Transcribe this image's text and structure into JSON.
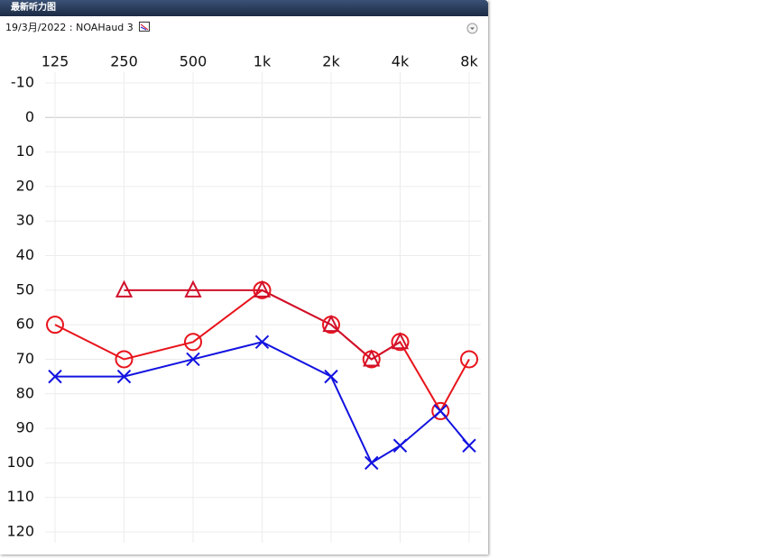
{
  "header": {
    "title": "最新听力图",
    "subtitle": "19/3月/2022 : NOAHaud 3"
  },
  "chart_data": {
    "type": "line",
    "x": [
      125,
      250,
      500,
      1000,
      2000,
      3000,
      4000,
      6000,
      8000
    ],
    "xlim": [
      125,
      8000
    ],
    "xscale": "log",
    "xticks": [
      125,
      250,
      500,
      {
        "value": 1000,
        "label": "1k"
      },
      {
        "value": 2000,
        "label": "2k"
      },
      {
        "value": 4000,
        "label": "4k"
      },
      {
        "value": 8000,
        "label": "8k"
      }
    ],
    "ylim": [
      -10,
      120
    ],
    "yinverted": true,
    "yticks": [
      -10,
      0,
      10,
      20,
      30,
      40,
      50,
      60,
      70,
      80,
      90,
      100,
      110,
      120
    ],
    "grid": true,
    "series": [
      {
        "color": "#e8141c",
        "marker": "circle",
        "values": [
          60,
          70,
          65,
          50,
          60,
          70,
          65,
          85,
          70
        ]
      },
      {
        "color": "#d0102a",
        "marker": "triangle",
        "values": [
          null,
          50,
          50,
          50,
          60,
          70,
          65,
          null,
          null
        ]
      },
      {
        "color": "#1212e0",
        "marker": "x",
        "values": [
          75,
          75,
          70,
          65,
          75,
          100,
          95,
          85,
          95
        ]
      }
    ]
  }
}
